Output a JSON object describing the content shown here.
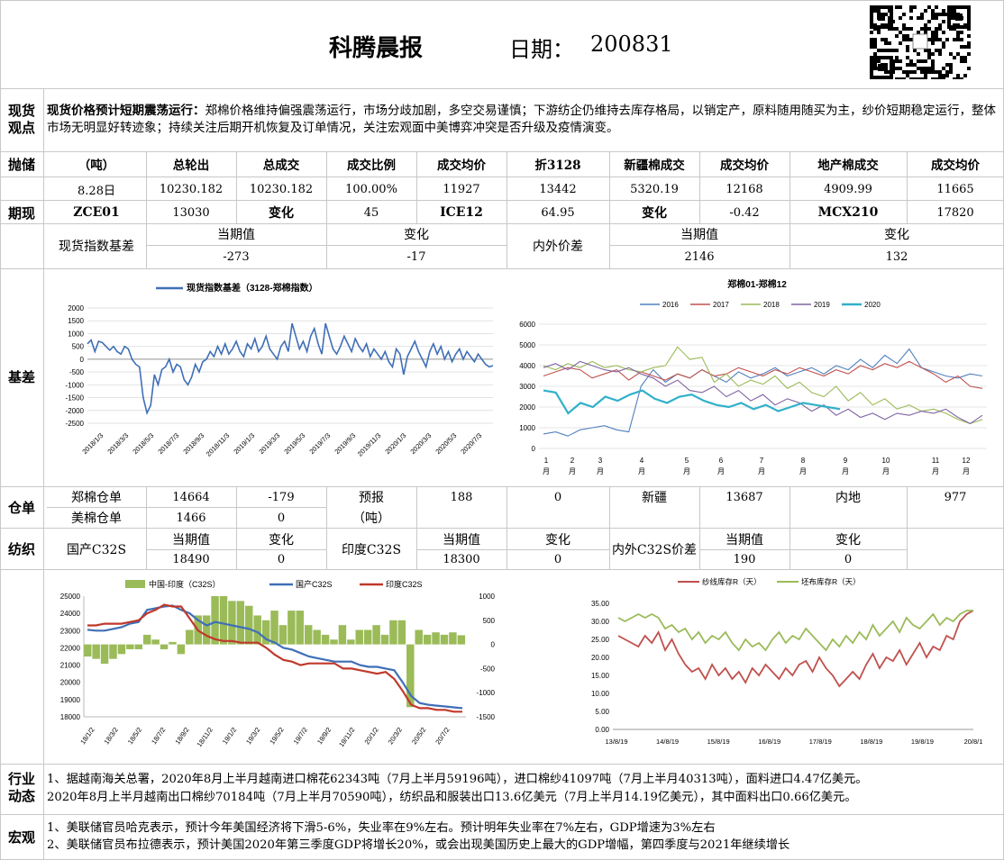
{
  "header": {
    "title": "科腾晨报",
    "date_label": "日期：",
    "date": "200831"
  },
  "spot": {
    "label": "现货观点",
    "headline": "现货价格预计短期震荡运行：",
    "text": "郑棉价格维持偏强震荡运行，市场分歧加剧，多空交易谨慎；下游纺企仍维持去库存格局，以销定产，原料随用随买为主，纱价短期稳定运行，整体市场无明显好转迹象；持续关注后期开机恢复及订单情况，关注宏观面中美博弈冲突是否升级及疫情演变。"
  },
  "reserve": {
    "label": "抛储",
    "headers": [
      "（吨）",
      "总轮出",
      "总成交",
      "成交比例",
      "成交均价",
      "折3128",
      "新疆棉成交",
      "成交均价",
      "地产棉成交",
      "成交均价"
    ],
    "row": [
      "8.28日",
      "10230.182",
      "10230.182",
      "100.00%",
      "11927",
      "13442",
      "5320.19",
      "12168",
      "4909.99",
      "11665"
    ]
  },
  "futures": {
    "label": "期现",
    "row": [
      "ZCE01",
      "13030",
      "变化",
      "45",
      "ICE12",
      "64.95",
      "变化",
      "-0.42",
      "MCX210",
      "17820"
    ],
    "sub_headers": [
      "当期值",
      "变化",
      "当期值",
      "变化"
    ],
    "left_label": "现货指数基差",
    "left_values": [
      "-273",
      "-17"
    ],
    "right_label": "内外价差",
    "right_values": [
      "2146",
      "132"
    ]
  },
  "basis": {
    "label": "基差"
  },
  "warehouse": {
    "label": "仓单",
    "rows": [
      [
        "郑棉仓单",
        "14664",
        "-179"
      ],
      [
        "美棉仓单",
        "1466",
        "0"
      ]
    ],
    "forecast_label": "预报",
    "forecast_unit": "（吨）",
    "forecast_values": [
      "188",
      "0"
    ],
    "xj_label": "新疆",
    "xj_value": "13687",
    "nd_label": "内地",
    "nd_value": "977"
  },
  "textile": {
    "label": "纺织",
    "items": [
      {
        "name": "国产C32S",
        "h1": "当期值",
        "h2": "变化",
        "v1": "18490",
        "v2": "0"
      },
      {
        "name": "印度C32S",
        "h1": "当期值",
        "h2": "变化",
        "v1": "18300",
        "v2": "0"
      },
      {
        "name": "内外C32S价差",
        "h1": "当期值",
        "h2": "变化",
        "v1": "190",
        "v2": "0"
      }
    ]
  },
  "industry": {
    "label": "行业动态",
    "lines": [
      "1、据越南海关总署，2020年8月上半月越南进口棉花62343吨（7月上半月59196吨），进口棉纱41097吨（7月上半月40313吨），面料进口4.47亿美元。",
      "2020年8月上半月越南出口棉纱70184吨（7月上半月70590吨），纺织品和服装出口13.6亿美元（7月上半月14.19亿美元），其中面料出口0.66亿美元。"
    ]
  },
  "macro": {
    "label": "宏观",
    "lines": [
      "1、美联储官员哈克表示，预计今年美国经济将下滑5-6%，失业率在9%左右。预计明年失业率在7%左右，GDP增速为3%左右",
      "2、美联储官员布拉德表示，预计美国2020年第三季度GDP将增长20%，或会出现美国历史上最大的GDP增幅，第四季度与2021年继续增长"
    ]
  },
  "chart_data": [
    {
      "id": "basis",
      "type": "line",
      "title": "",
      "legend": [
        "现货指数基差（3128-郑棉指数）"
      ],
      "ylim": [
        -2500,
        2000
      ],
      "yticks": [
        -2500,
        -2000,
        -1500,
        -1000,
        -500,
        0,
        500,
        1000,
        1500,
        2000
      ],
      "xticks": [
        "2018/1/3",
        "2018/3/3",
        "2018/5/3",
        "2018/7/3",
        "2018/9/3",
        "2018/11/3",
        "2019/1/3",
        "2019/3/3",
        "2019/5/3",
        "2019/7/3",
        "2019/9/3",
        "2019/11/3",
        "2020/1/3",
        "2020/3/3",
        "2020/5/3",
        "2020/7/3"
      ],
      "color": "#3f6fb6",
      "series": [
        {
          "name": "现货指数基差（3128-郑棉指数）",
          "values": [
            600,
            750,
            300,
            700,
            650,
            500,
            350,
            500,
            300,
            200,
            500,
            400,
            0,
            -200,
            -300,
            -1500,
            -2100,
            -1800,
            -600,
            -1000,
            -400,
            -300,
            0,
            -500,
            -200,
            -300,
            -800,
            -1000,
            -700,
            -200,
            -500,
            -100,
            0,
            300,
            100,
            500,
            200,
            600,
            200,
            400,
            700,
            300,
            100,
            600,
            400,
            800,
            300,
            500,
            900,
            400,
            200,
            0,
            500,
            700,
            300,
            1400,
            900,
            400,
            700,
            300,
            900,
            1200,
            600,
            200,
            1400,
            900,
            400,
            200,
            500,
            900,
            600,
            300,
            800,
            500,
            300,
            600,
            100,
            400,
            200,
            0,
            300,
            -100,
            -300,
            400,
            200,
            -600,
            100,
            400,
            700,
            300,
            0,
            -300,
            300,
            600,
            200,
            500,
            0,
            300,
            -100,
            200,
            400,
            0,
            300,
            100,
            -100,
            200,
            0,
            -200,
            -300,
            -250
          ]
        }
      ]
    },
    {
      "id": "spread",
      "type": "line",
      "title": "郑棉01-郑棉12",
      "ylim": [
        0,
        6000
      ],
      "yticks": [
        0,
        1000,
        2000,
        3000,
        4000,
        5000,
        6000
      ],
      "xticks": [
        "1\n月",
        "2\n月",
        "3\n月",
        "4\n月",
        "5\n月",
        "6\n月",
        "7\n月",
        "8\n月",
        "9\n月",
        "10\n月",
        "11\n月",
        "12\n月"
      ],
      "series": [
        {
          "name": "2016",
          "color": "#4f81bd",
          "values": [
            700,
            800,
            600,
            900,
            1000,
            1100,
            900,
            800,
            3000,
            3800,
            3200,
            3600,
            3400,
            3800,
            3500,
            3200,
            3700,
            3400,
            3600,
            3900,
            3500,
            3700,
            3900,
            3600,
            4000,
            3800,
            4300,
            3900,
            4500,
            4100,
            4800,
            3900,
            3700,
            3500,
            3400,
            3600,
            3500
          ]
        },
        {
          "name": "2017",
          "color": "#c0504d",
          "values": [
            3500,
            3700,
            3900,
            3800,
            3400,
            3600,
            3800,
            3300,
            3700,
            3500,
            3300,
            3600,
            3400,
            3800,
            3500,
            3600,
            3900,
            3700,
            3500,
            3800,
            3600,
            3900,
            3700,
            3500,
            3800,
            3600,
            4000,
            3800,
            4100,
            3900,
            4200,
            3900,
            3600,
            3200,
            3500,
            3000,
            2900
          ]
        },
        {
          "name": "2018",
          "color": "#9bbb59",
          "values": [
            4000,
            3800,
            4100,
            3900,
            4200,
            3900,
            4000,
            3800,
            3700,
            3900,
            4000,
            4900,
            4300,
            4400,
            3200,
            3600,
            3000,
            3300,
            3100,
            3500,
            2900,
            3200,
            2700,
            2500,
            3000,
            2300,
            2700,
            2100,
            2400,
            1900,
            2100,
            1800,
            1900,
            1700,
            1400,
            1200,
            1400
          ]
        },
        {
          "name": "2019",
          "color": "#8064a2",
          "values": [
            3900,
            4100,
            3800,
            4200,
            4000,
            3800,
            3700,
            3900,
            3600,
            3400,
            3000,
            3300,
            2800,
            2700,
            3000,
            2500,
            2800,
            2300,
            2600,
            2100,
            2400,
            2200,
            1800,
            2100,
            1600,
            1900,
            1500,
            1700,
            1400,
            1700,
            1600,
            1800,
            1700,
            1900,
            1500,
            1200,
            1600
          ]
        },
        {
          "name": "2020",
          "color": "#31b0c9",
          "values": [
            2800,
            2700,
            1700,
            2200,
            2000,
            2500,
            2300,
            2600,
            2800,
            2400,
            2200,
            2500,
            2600,
            2300,
            2100,
            2000,
            2200,
            1900,
            2100,
            1800,
            2000,
            2200,
            2100,
            2000,
            1900
          ]
        }
      ]
    },
    {
      "id": "yarn",
      "type": "line",
      "title": "",
      "legend": [
        "中国-印度（C32S）",
        "国产C32S",
        "印度C32S"
      ],
      "ylim_left": [
        18000,
        25000
      ],
      "yticks_left": [
        18000,
        19000,
        20000,
        21000,
        22000,
        23000,
        24000,
        25000
      ],
      "ylim_right": [
        -1500,
        1000
      ],
      "yticks_right": [
        -1500,
        -1000,
        -500,
        0,
        500,
        1000
      ],
      "xticks": [
        "18/1/2",
        "18/3/2",
        "18/5/2",
        "18/7/2",
        "18/9/2",
        "18/11/2",
        "19/1/2",
        "19/3/2",
        "19/5/2",
        "19/7/2",
        "19/9/2",
        "19/11/2",
        "20/1/2",
        "20/3/2",
        "20/5/2",
        "20/7/2"
      ],
      "series": [
        {
          "name": "国产C32S",
          "color": "#3f6fb6",
          "values": [
            23050,
            23000,
            23000,
            23100,
            23200,
            23400,
            23500,
            24200,
            24300,
            24400,
            24450,
            24200,
            24000,
            23600,
            23300,
            23500,
            23400,
            23300,
            23200,
            23100,
            22900,
            22500,
            22300,
            22000,
            21900,
            21700,
            21500,
            21400,
            21300,
            21200,
            21200,
            21200,
            21000,
            20900,
            20900,
            20800,
            20700,
            20000,
            19200,
            18800,
            18700,
            18650,
            18600,
            18550,
            18500
          ]
        },
        {
          "name": "印度C32S",
          "color": "#c0392b",
          "values": [
            23300,
            23300,
            23400,
            23400,
            23400,
            23500,
            23600,
            24000,
            24200,
            24500,
            24400,
            24400,
            23700,
            23000,
            22700,
            22500,
            22400,
            22400,
            22300,
            22300,
            22300,
            22000,
            21600,
            21300,
            21200,
            21000,
            21100,
            21100,
            21100,
            21100,
            20800,
            20800,
            20700,
            20600,
            20500,
            20600,
            20200,
            19500,
            18700,
            18500,
            18500,
            18400,
            18400,
            18300,
            18300
          ]
        },
        {
          "name": "中国-印度（C32S）",
          "color": "#9bbb59",
          "type": "bar",
          "values": [
            -250,
            -300,
            -400,
            -300,
            -200,
            -100,
            -100,
            200,
            100,
            -100,
            50,
            -200,
            300,
            600,
            600,
            1000,
            1000,
            900,
            900,
            800,
            600,
            500,
            700,
            400,
            700,
            700,
            400,
            300,
            200,
            100,
            400,
            100,
            300,
            300,
            400,
            200,
            500,
            500,
            -1300,
            300,
            200,
            250,
            200,
            250,
            190
          ]
        }
      ]
    },
    {
      "id": "inventory",
      "type": "line",
      "title": "",
      "legend": [
        "纱线库存R（天）",
        "坯布库存R（天）"
      ],
      "ylim": [
        0,
        35
      ],
      "yticks": [
        "0.00",
        "5.00",
        "10.00",
        "15.00",
        "20.00",
        "25.00",
        "30.00",
        "35.00"
      ],
      "xticks": [
        "13/8/19",
        "14/8/19",
        "15/8/19",
        "16/8/19",
        "17/8/19",
        "18/8/19",
        "19/8/19",
        "20/8/1"
      ],
      "series": [
        {
          "name": "纱线库存R（天）",
          "color": "#c0504d",
          "values": [
            26,
            25,
            24,
            23,
            26,
            24,
            27,
            22,
            25,
            21,
            18,
            16,
            17,
            14,
            18,
            15,
            17,
            14,
            16,
            13,
            17,
            15,
            18,
            16,
            14,
            17,
            15,
            18,
            19,
            16,
            20,
            17,
            15,
            12,
            14,
            16,
            14,
            18,
            21,
            17,
            20,
            19,
            22,
            18,
            21,
            24,
            20,
            23,
            22,
            26,
            25,
            30,
            32,
            33
          ]
        },
        {
          "name": "坯布库存R（天）",
          "color": "#9bbb59",
          "values": [
            31,
            30,
            31,
            32,
            31,
            32,
            31,
            28,
            29,
            27,
            28,
            25,
            27,
            24,
            26,
            25,
            27,
            24,
            22,
            25,
            23,
            24,
            22,
            25,
            27,
            24,
            26,
            25,
            28,
            26,
            24,
            22,
            25,
            23,
            26,
            24,
            27,
            25,
            29,
            26,
            28,
            30,
            27,
            31,
            29,
            28,
            30,
            32,
            29,
            31,
            30,
            32,
            33,
            33
          ]
        }
      ]
    }
  ]
}
